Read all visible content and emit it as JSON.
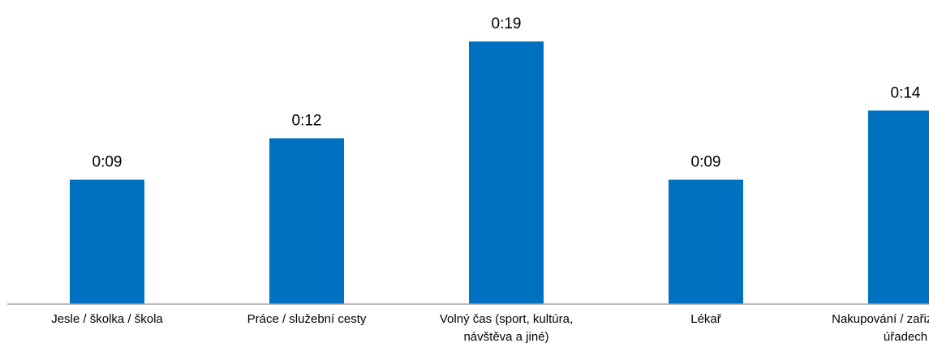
{
  "chart_data": {
    "type": "bar",
    "categories": [
      "Jesle / školka / škola",
      "Práce / služební cesty",
      "Volný čas (sport, kultúra, návštěva a jiné)",
      "Lékař",
      "Nakupování / zařizování na úřadech"
    ],
    "values": [
      9,
      12,
      19,
      9,
      14
    ],
    "value_labels": [
      "0:09",
      "0:12",
      "0:19",
      "0:09",
      "0:14"
    ],
    "color": "#0070c0",
    "ylim": [
      0,
      22
    ]
  }
}
